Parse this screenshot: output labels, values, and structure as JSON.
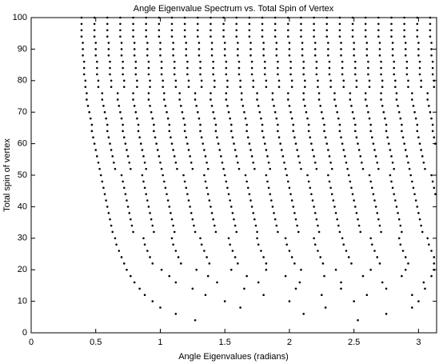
{
  "chart_data": {
    "type": "scatter",
    "title": "Angle Eigenvalue Spectrum vs. Total Spin of Vertex",
    "x_label": "Angle Eigenvalues (radians)",
    "y_label": "Total spin of vertex",
    "color": "#000000",
    "xlim": [
      0,
      3.14
    ],
    "ylim": [
      0,
      100
    ],
    "xticks": [
      0,
      0.5,
      1,
      1.5,
      2,
      2.5,
      3
    ],
    "yticks": [
      0,
      10,
      20,
      30,
      40,
      50,
      60,
      70,
      80,
      90,
      100
    ],
    "rows": [
      {
        "spin": 4,
        "angles": [
          1.27,
          2.53
        ]
      },
      {
        "spin": 6,
        "angles": [
          1.12,
          2.11,
          2.75
        ]
      },
      {
        "spin": 8,
        "angles": [
          1.0,
          1.62,
          2.28,
          2.95
        ]
      },
      {
        "spin": 10,
        "angles": [
          0.94,
          1.5,
          2.0,
          2.5,
          3.0
        ]
      },
      {
        "spin": 12,
        "angles": [
          0.88,
          1.35,
          1.8,
          2.25,
          2.6,
          2.95
        ]
      },
      {
        "spin": 14,
        "angles": [
          0.84,
          1.25,
          1.65,
          2.05,
          2.4,
          2.75,
          3.05
        ]
      },
      {
        "spin": 16,
        "angles": [
          0.8,
          1.12,
          1.44,
          1.76,
          2.08,
          2.4,
          2.72,
          3.04
        ]
      },
      {
        "spin": 18,
        "angles": [
          0.77,
          1.07,
          1.37,
          1.67,
          1.97,
          2.27,
          2.57,
          2.87,
          3.1
        ]
      },
      {
        "spin": 20,
        "angles": [
          0.74,
          1.01,
          1.28,
          1.55,
          1.82,
          2.09,
          2.36,
          2.63,
          2.9,
          3.12
        ]
      },
      {
        "spin": 22,
        "angles": [
          0.72,
          0.94,
          1.16,
          1.38,
          1.6,
          1.82,
          2.04,
          2.26,
          2.48,
          2.7,
          2.92,
          3.12
        ]
      },
      {
        "spin": 24,
        "angles": [
          0.7,
          0.92,
          1.14,
          1.36,
          1.58,
          1.8,
          2.02,
          2.24,
          2.46,
          2.68,
          2.9,
          3.12
        ]
      },
      {
        "spin": 26,
        "angles": [
          0.68,
          0.9,
          1.12,
          1.34,
          1.56,
          1.78,
          2.0,
          2.22,
          2.44,
          2.66,
          2.88,
          3.1
        ]
      },
      {
        "spin": 28,
        "angles": [
          0.66,
          0.88,
          1.1,
          1.32,
          1.54,
          1.76,
          1.98,
          2.2,
          2.42,
          2.64,
          2.86,
          3.08
        ]
      },
      {
        "spin": 30,
        "angles": [
          0.65,
          0.87,
          1.09,
          1.31,
          1.53,
          1.75,
          1.97,
          2.19,
          2.41,
          2.63,
          2.85,
          3.07
        ]
      },
      {
        "spin": 32,
        "angles": [
          0.63,
          0.79,
          0.95,
          1.11,
          1.27,
          1.43,
          1.59,
          1.75,
          1.91,
          2.07,
          2.23,
          2.39,
          2.55,
          2.71,
          2.87,
          3.03
        ]
      },
      {
        "spin": 34,
        "angles": [
          0.62,
          0.78,
          0.94,
          1.1,
          1.26,
          1.42,
          1.58,
          1.74,
          1.9,
          2.06,
          2.22,
          2.38,
          2.54,
          2.7,
          2.86,
          3.02
        ]
      },
      {
        "spin": 36,
        "angles": [
          0.61,
          0.77,
          0.93,
          1.09,
          1.25,
          1.41,
          1.57,
          1.73,
          1.89,
          2.05,
          2.21,
          2.37,
          2.53,
          2.69,
          2.85,
          3.01
        ]
      },
      {
        "spin": 38,
        "angles": [
          0.6,
          0.76,
          0.92,
          1.08,
          1.24,
          1.4,
          1.56,
          1.72,
          1.88,
          2.04,
          2.2,
          2.36,
          2.52,
          2.68,
          2.84,
          3.0
        ]
      },
      {
        "spin": 40,
        "angles": [
          0.59,
          0.75,
          0.91,
          1.07,
          1.23,
          1.39,
          1.55,
          1.71,
          1.87,
          2.03,
          2.19,
          2.35,
          2.51,
          2.67,
          2.83,
          2.99
        ]
      },
      {
        "spin": 42,
        "angles": [
          0.58,
          0.74,
          0.9,
          1.06,
          1.22,
          1.38,
          1.54,
          1.7,
          1.86,
          2.02,
          2.18,
          2.34,
          2.5,
          2.66,
          2.82,
          2.98
        ]
      },
      {
        "spin": 44,
        "angles": [
          0.57,
          0.73,
          0.89,
          1.05,
          1.21,
          1.37,
          1.53,
          1.69,
          1.85,
          2.01,
          2.17,
          2.33,
          2.49,
          2.65,
          2.81,
          2.97,
          3.13
        ]
      },
      {
        "spin": 46,
        "angles": [
          0.56,
          0.72,
          0.88,
          1.04,
          1.2,
          1.36,
          1.52,
          1.68,
          1.84,
          2.0,
          2.16,
          2.32,
          2.48,
          2.64,
          2.8,
          2.96,
          3.12
        ]
      },
      {
        "spin": 48,
        "angles": [
          0.55,
          0.71,
          0.87,
          1.03,
          1.19,
          1.35,
          1.51,
          1.67,
          1.83,
          1.99,
          2.15,
          2.31,
          2.47,
          2.63,
          2.79,
          2.95,
          3.11
        ]
      },
      {
        "spin": 50,
        "angles": [
          0.54,
          0.7,
          0.86,
          1.02,
          1.18,
          1.34,
          1.5,
          1.66,
          1.82,
          1.98,
          2.14,
          2.3,
          2.46,
          2.62,
          2.78,
          2.94,
          3.1
        ]
      },
      {
        "spin": 52,
        "angles": [
          0.53,
          0.65,
          0.77,
          0.89,
          1.01,
          1.13,
          1.25,
          1.37,
          1.49,
          1.61,
          1.73,
          1.85,
          1.97,
          2.09,
          2.21,
          2.33,
          2.45,
          2.57,
          2.69,
          2.81,
          2.93,
          3.05
        ]
      },
      {
        "spin": 54,
        "angles": [
          0.52,
          0.64,
          0.76,
          0.88,
          1.0,
          1.12,
          1.24,
          1.36,
          1.48,
          1.6,
          1.72,
          1.84,
          1.96,
          2.08,
          2.2,
          2.32,
          2.44,
          2.56,
          2.68,
          2.8,
          2.92,
          3.04
        ]
      },
      {
        "spin": 56,
        "angles": [
          0.51,
          0.63,
          0.75,
          0.87,
          0.99,
          1.11,
          1.23,
          1.35,
          1.47,
          1.59,
          1.71,
          1.83,
          1.95,
          2.07,
          2.19,
          2.31,
          2.43,
          2.55,
          2.67,
          2.79,
          2.91,
          3.03
        ]
      },
      {
        "spin": 58,
        "angles": [
          0.5,
          0.62,
          0.74,
          0.86,
          0.98,
          1.1,
          1.22,
          1.34,
          1.46,
          1.58,
          1.7,
          1.82,
          1.94,
          2.06,
          2.18,
          2.3,
          2.42,
          2.54,
          2.66,
          2.78,
          2.9,
          3.02
        ]
      },
      {
        "spin": 60,
        "angles": [
          0.49,
          0.61,
          0.73,
          0.85,
          0.97,
          1.09,
          1.21,
          1.33,
          1.45,
          1.57,
          1.69,
          1.81,
          1.93,
          2.05,
          2.17,
          2.29,
          2.41,
          2.53,
          2.65,
          2.77,
          2.89,
          3.01,
          3.13
        ]
      },
      {
        "spin": 62,
        "angles": [
          0.48,
          0.6,
          0.72,
          0.84,
          0.96,
          1.08,
          1.2,
          1.32,
          1.44,
          1.56,
          1.68,
          1.8,
          1.92,
          2.04,
          2.16,
          2.28,
          2.4,
          2.52,
          2.64,
          2.76,
          2.88,
          3.0,
          3.12
        ]
      },
      {
        "spin": 64,
        "angles": [
          0.47,
          0.59,
          0.71,
          0.83,
          0.95,
          1.07,
          1.19,
          1.31,
          1.43,
          1.55,
          1.67,
          1.79,
          1.91,
          2.03,
          2.15,
          2.27,
          2.39,
          2.51,
          2.63,
          2.75,
          2.87,
          2.99,
          3.11
        ]
      },
      {
        "spin": 66,
        "angles": [
          0.47,
          0.59,
          0.71,
          0.83,
          0.95,
          1.07,
          1.19,
          1.31,
          1.43,
          1.55,
          1.67,
          1.79,
          1.91,
          2.03,
          2.15,
          2.27,
          2.39,
          2.51,
          2.63,
          2.75,
          2.87,
          2.99,
          3.11
        ]
      },
      {
        "spin": 68,
        "angles": [
          0.46,
          0.58,
          0.7,
          0.82,
          0.94,
          1.06,
          1.18,
          1.3,
          1.42,
          1.54,
          1.66,
          1.78,
          1.9,
          2.02,
          2.14,
          2.26,
          2.38,
          2.5,
          2.62,
          2.74,
          2.86,
          2.98,
          3.1
        ]
      },
      {
        "spin": 70,
        "angles": [
          0.45,
          0.57,
          0.69,
          0.81,
          0.93,
          1.05,
          1.17,
          1.29,
          1.41,
          1.53,
          1.65,
          1.77,
          1.89,
          2.01,
          2.13,
          2.25,
          2.37,
          2.49,
          2.61,
          2.73,
          2.85,
          2.97,
          3.09
        ]
      },
      {
        "spin": 72,
        "angles": [
          0.44,
          0.56,
          0.68,
          0.8,
          0.92,
          1.04,
          1.16,
          1.28,
          1.4,
          1.52,
          1.64,
          1.76,
          1.88,
          2.0,
          2.12,
          2.24,
          2.36,
          2.48,
          2.6,
          2.72,
          2.84,
          2.96,
          3.08
        ]
      },
      {
        "spin": 74,
        "angles": [
          0.43,
          0.55,
          0.67,
          0.79,
          0.91,
          1.03,
          1.15,
          1.27,
          1.39,
          1.51,
          1.63,
          1.75,
          1.87,
          1.99,
          2.11,
          2.23,
          2.35,
          2.47,
          2.59,
          2.71,
          2.83,
          2.95,
          3.07
        ]
      },
      {
        "spin": 76,
        "angles": [
          0.43,
          0.55,
          0.67,
          0.79,
          0.91,
          1.03,
          1.15,
          1.27,
          1.39,
          1.51,
          1.63,
          1.75,
          1.87,
          1.99,
          2.11,
          2.23,
          2.35,
          2.47,
          2.59,
          2.71,
          2.83,
          2.95,
          3.07
        ]
      },
      {
        "spin": 78,
        "angles": [
          0.42,
          0.52,
          0.62,
          0.72,
          0.82,
          0.92,
          1.02,
          1.12,
          1.22,
          1.32,
          1.42,
          1.52,
          1.62,
          1.72,
          1.82,
          1.92,
          2.02,
          2.12,
          2.22,
          2.32,
          2.42,
          2.52,
          2.62,
          2.72,
          2.82,
          2.92,
          3.02,
          3.12
        ]
      },
      {
        "spin": 80,
        "angles": [
          0.42,
          0.52,
          0.62,
          0.72,
          0.82,
          0.92,
          1.02,
          1.12,
          1.22,
          1.32,
          1.42,
          1.52,
          1.62,
          1.72,
          1.82,
          1.92,
          2.02,
          2.12,
          2.22,
          2.32,
          2.42,
          2.52,
          2.62,
          2.72,
          2.82,
          2.92,
          3.02,
          3.12
        ]
      },
      {
        "spin": 82,
        "angles": [
          0.41,
          0.51,
          0.61,
          0.71,
          0.81,
          0.91,
          1.01,
          1.11,
          1.21,
          1.31,
          1.41,
          1.51,
          1.61,
          1.71,
          1.81,
          1.91,
          2.01,
          2.11,
          2.21,
          2.31,
          2.41,
          2.51,
          2.61,
          2.71,
          2.81,
          2.91,
          3.01,
          3.11
        ]
      },
      {
        "spin": 84,
        "angles": [
          0.41,
          0.51,
          0.61,
          0.71,
          0.81,
          0.91,
          1.01,
          1.11,
          1.21,
          1.31,
          1.41,
          1.51,
          1.61,
          1.71,
          1.81,
          1.91,
          2.01,
          2.11,
          2.21,
          2.31,
          2.41,
          2.51,
          2.61,
          2.71,
          2.81,
          2.91,
          3.01,
          3.11
        ]
      },
      {
        "spin": 86,
        "angles": [
          0.41,
          0.51,
          0.61,
          0.71,
          0.81,
          0.91,
          1.01,
          1.11,
          1.21,
          1.31,
          1.41,
          1.51,
          1.61,
          1.71,
          1.81,
          1.91,
          2.01,
          2.11,
          2.21,
          2.31,
          2.41,
          2.51,
          2.61,
          2.71,
          2.81,
          2.91,
          3.01,
          3.11
        ]
      },
      {
        "spin": 88,
        "angles": [
          0.4,
          0.5,
          0.6,
          0.7,
          0.8,
          0.9,
          1.0,
          1.1,
          1.2,
          1.3,
          1.4,
          1.5,
          1.6,
          1.7,
          1.8,
          1.9,
          2.0,
          2.1,
          2.2,
          2.3,
          2.4,
          2.5,
          2.6,
          2.7,
          2.8,
          2.9,
          3.0,
          3.1
        ]
      },
      {
        "spin": 90,
        "angles": [
          0.4,
          0.5,
          0.6,
          0.7,
          0.8,
          0.9,
          1.0,
          1.1,
          1.2,
          1.3,
          1.4,
          1.5,
          1.6,
          1.7,
          1.8,
          1.9,
          2.0,
          2.1,
          2.2,
          2.3,
          2.4,
          2.5,
          2.6,
          2.7,
          2.8,
          2.9,
          3.0,
          3.1
        ]
      },
      {
        "spin": 92,
        "angles": [
          0.4,
          0.5,
          0.6,
          0.7,
          0.8,
          0.9,
          1.0,
          1.1,
          1.2,
          1.3,
          1.4,
          1.5,
          1.6,
          1.7,
          1.8,
          1.9,
          2.0,
          2.1,
          2.2,
          2.3,
          2.4,
          2.5,
          2.6,
          2.7,
          2.8,
          2.9,
          3.0,
          3.1
        ]
      },
      {
        "spin": 94,
        "angles": [
          0.39,
          0.49,
          0.59,
          0.69,
          0.79,
          0.89,
          0.99,
          1.09,
          1.19,
          1.29,
          1.39,
          1.49,
          1.59,
          1.69,
          1.79,
          1.89,
          1.99,
          2.09,
          2.19,
          2.29,
          2.39,
          2.49,
          2.59,
          2.69,
          2.79,
          2.89,
          2.99,
          3.09
        ]
      },
      {
        "spin": 96,
        "angles": [
          0.39,
          0.49,
          0.59,
          0.69,
          0.79,
          0.89,
          0.99,
          1.09,
          1.19,
          1.29,
          1.39,
          1.49,
          1.59,
          1.69,
          1.79,
          1.89,
          1.99,
          2.09,
          2.19,
          2.29,
          2.39,
          2.49,
          2.59,
          2.69,
          2.79,
          2.89,
          2.99,
          3.09
        ]
      },
      {
        "spin": 98,
        "angles": [
          0.39,
          0.49,
          0.59,
          0.69,
          0.79,
          0.89,
          0.99,
          1.09,
          1.19,
          1.29,
          1.39,
          1.49,
          1.59,
          1.69,
          1.79,
          1.89,
          1.99,
          2.09,
          2.19,
          2.29,
          2.39,
          2.49,
          2.59,
          2.69,
          2.79,
          2.89,
          2.99,
          3.09
        ]
      },
      {
        "spin": 100,
        "angles": [
          0.39,
          0.49,
          0.59,
          0.69,
          0.79,
          0.89,
          0.99,
          1.09,
          1.19,
          1.29,
          1.39,
          1.49,
          1.59,
          1.69,
          1.79,
          1.89,
          1.99,
          2.09,
          2.19,
          2.29,
          2.39,
          2.49,
          2.59,
          2.69,
          2.79,
          2.89,
          2.99,
          3.09
        ]
      }
    ]
  }
}
